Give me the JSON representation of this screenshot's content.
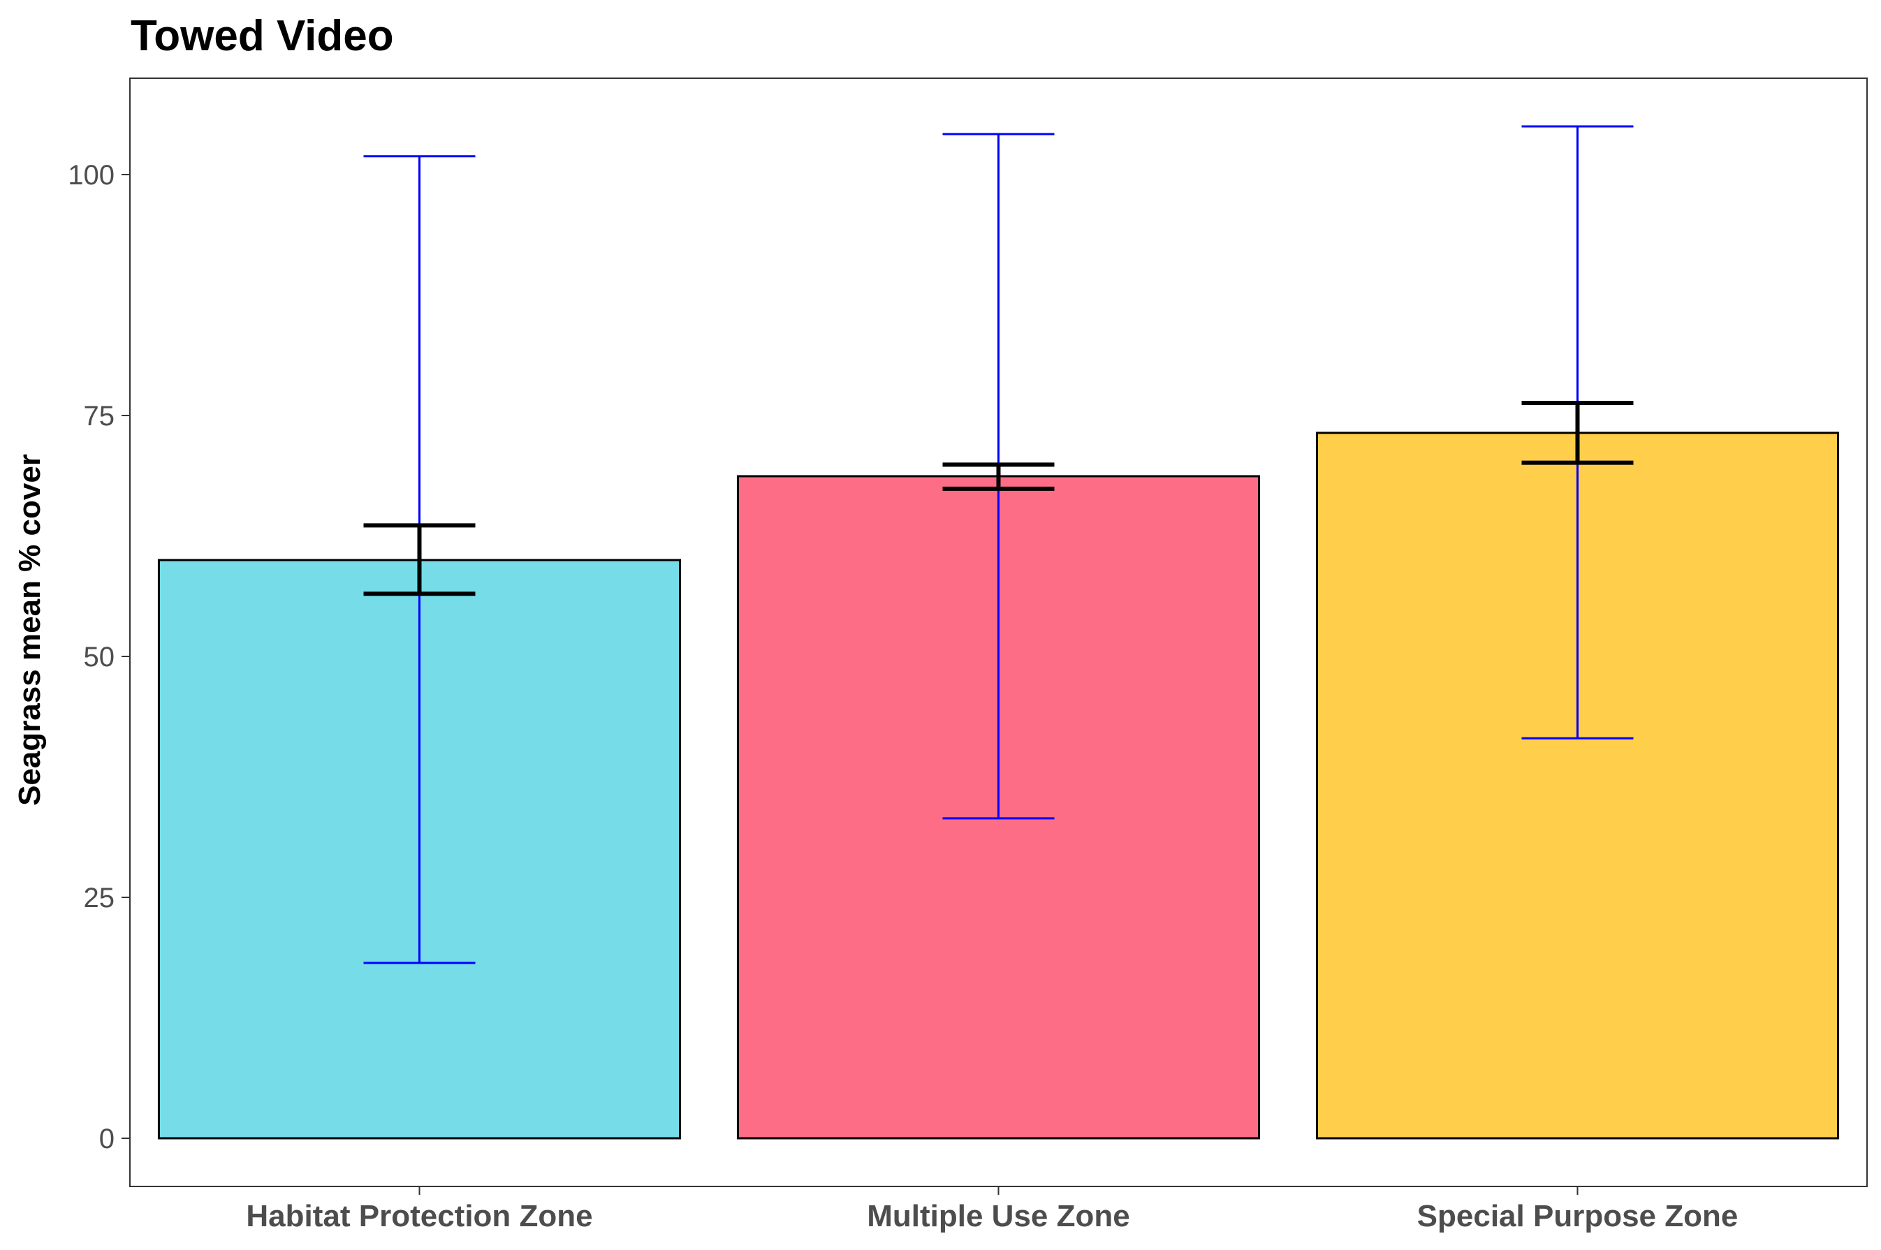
{
  "chart_data": {
    "type": "bar",
    "title": "Towed Video",
    "xlabel": "",
    "ylabel": "Seagrass mean % cover",
    "categories": [
      "Habitat Protection Zone",
      "Multiple Use Zone",
      "Special Purpose Zone"
    ],
    "values": [
      60,
      68.7,
      73.2
    ],
    "se_error": {
      "lower": [
        56.5,
        67.4,
        70.1
      ],
      "upper": [
        63.6,
        69.9,
        76.3
      ]
    },
    "sd_error": {
      "lower": [
        18.2,
        33.2,
        41.5
      ],
      "upper": [
        101.9,
        104.2,
        105.0
      ]
    },
    "ylim": [
      -5,
      110
    ],
    "yticks": [
      0,
      25,
      50,
      75,
      100
    ],
    "grid": false,
    "legend": "none",
    "colors": {
      "bars": [
        "#76dde8",
        "#fd6d85",
        "#ffce4a"
      ],
      "bar_outline": "#000000",
      "se_error_bar": "#000000",
      "sd_error_bar": "#0000ff",
      "axis": "#333333"
    }
  }
}
